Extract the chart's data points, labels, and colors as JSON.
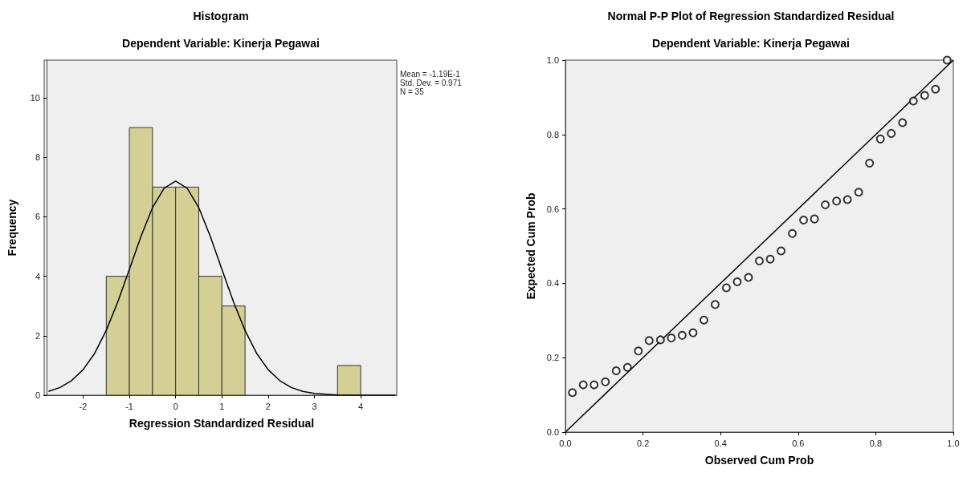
{
  "chart_data": [
    {
      "type": "histogram",
      "title": "Histogram",
      "subtitle": "Dependent Variable: Kinerja Pegawai",
      "xlabel": "Regression Standardized Residual",
      "ylabel": "Frequency",
      "bins": [
        -1.5,
        -1,
        -0.5,
        0,
        0.5,
        1,
        1.5,
        2,
        2.5,
        3,
        3.5,
        4
      ],
      "values": [
        4,
        9,
        7,
        7,
        4,
        3,
        0,
        0,
        0,
        0,
        1
      ],
      "color": "#d3cf95",
      "series": [
        {
          "type": "line",
          "color": "#000000",
          "x": [
            -2.75,
            -2.5,
            -2.25,
            -2,
            -1.75,
            -1.5,
            -1.25,
            -1,
            -0.75,
            -0.5,
            -0.25,
            0,
            0.25,
            0.5,
            0.75,
            1,
            1.25,
            1.5,
            1.75,
            2,
            2.25,
            2.5,
            2.75,
            3,
            3.5,
            4,
            4.75
          ],
          "values": [
            0.13,
            0.26,
            0.49,
            0.86,
            1.41,
            2.18,
            3.14,
            4.23,
            5.34,
            6.31,
            6.96,
            7.2,
            6.96,
            6.31,
            5.34,
            4.23,
            3.14,
            2.18,
            1.41,
            0.86,
            0.49,
            0.26,
            0.13,
            0.06,
            0.01,
            0,
            0
          ]
        }
      ],
      "xlim": [
        -2.79,
        4.78
      ],
      "xticks": [
        -2,
        -1,
        0,
        1,
        2,
        3,
        4
      ],
      "ylim": [
        0,
        11.27
      ],
      "yticks": [
        0,
        2,
        4,
        6,
        8,
        10
      ],
      "annotations": [
        "Mean = -1.19E-1",
        "Std. Dev. = 0.971",
        "N = 35"
      ],
      "grid": false
    },
    {
      "type": "scatter",
      "title": "Normal P-P Plot of Regression Standardized Residual",
      "subtitle": "Dependent Variable: Kinerja Pegawai",
      "xlabel": "Observed Cum Prob",
      "ylabel": "Expected Cum Prob",
      "series": [
        {
          "type": "scatter",
          "color": "#000000",
          "x": [
            0.018,
            0.046,
            0.074,
            0.103,
            0.131,
            0.16,
            0.188,
            0.216,
            0.245,
            0.273,
            0.301,
            0.329,
            0.357,
            0.386,
            0.415,
            0.443,
            0.472,
            0.5,
            0.528,
            0.556,
            0.585,
            0.614,
            0.642,
            0.67,
            0.699,
            0.727,
            0.756,
            0.784,
            0.812,
            0.84,
            0.869,
            0.897,
            0.926,
            0.954,
            0.984
          ],
          "values": [
            0.106,
            0.127,
            0.127,
            0.135,
            0.165,
            0.174,
            0.218,
            0.246,
            0.248,
            0.253,
            0.26,
            0.267,
            0.301,
            0.343,
            0.388,
            0.404,
            0.416,
            0.46,
            0.465,
            0.487,
            0.534,
            0.57,
            0.573,
            0.611,
            0.621,
            0.625,
            0.645,
            0.723,
            0.788,
            0.803,
            0.832,
            0.89,
            0.905,
            0.922,
            1.0
          ]
        },
        {
          "type": "line",
          "color": "#000000",
          "marker": "none",
          "x": [
            0,
            1
          ],
          "values": [
            0,
            1
          ]
        }
      ],
      "xlim": [
        0,
        1
      ],
      "xticks": [
        {
          "value": 0,
          "label": "0.0"
        },
        {
          "value": 0.2,
          "label": "0.2"
        },
        {
          "value": 0.4,
          "label": "0.4"
        },
        {
          "value": 0.6,
          "label": "0.6"
        },
        {
          "value": 0.8,
          "label": "0.8"
        },
        {
          "value": 1,
          "label": "1.0"
        }
      ],
      "ylim": [
        0,
        1
      ],
      "yticks": [
        {
          "value": 0,
          "label": "0.0"
        },
        {
          "value": 0.2,
          "label": "0.2"
        },
        {
          "value": 0.4,
          "label": "0.4"
        },
        {
          "value": 0.6,
          "label": "0.6"
        },
        {
          "value": 0.8,
          "label": "0.8"
        },
        {
          "value": 1,
          "label": "1.0"
        }
      ],
      "marker": "circle",
      "grid": false
    }
  ]
}
